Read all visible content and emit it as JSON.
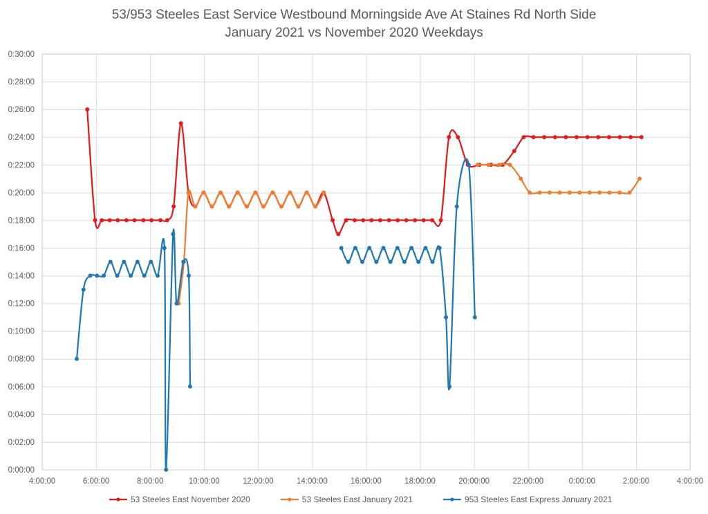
{
  "chart_data": {
    "type": "line",
    "title_lines": [
      "53/953 Steeles East Service Westbound Morningside Ave At Staines Rd North Side",
      "January 2021 vs November 2020 Weekdays"
    ],
    "xlabel": "",
    "ylabel": "",
    "x_unit": "hours since midnight",
    "y_unit": "minutes",
    "xlim": [
      4,
      28
    ],
    "ylim": [
      0,
      30
    ],
    "x_tick_values": [
      4,
      6,
      8,
      10,
      12,
      14,
      16,
      18,
      20,
      22,
      24,
      26,
      28
    ],
    "x_tick_labels": [
      "4:00:00",
      "6:00:00",
      "8:00:00",
      "10:00:00",
      "12:00:00",
      "14:00:00",
      "16:00:00",
      "18:00:00",
      "20:00:00",
      "22:00:00",
      "0:00:00",
      "2:00:00",
      "4:00:00"
    ],
    "y_tick_values": [
      0,
      2,
      4,
      6,
      8,
      10,
      12,
      14,
      16,
      18,
      20,
      22,
      24,
      26,
      28,
      30
    ],
    "y_tick_labels": [
      "0:00:00",
      "0:02:00",
      "0:04:00",
      "0:06:00",
      "0:08:00",
      "0:10:00",
      "0:12:00",
      "0:14:00",
      "0:16:00",
      "0:18:00",
      "0:20:00",
      "0:22:00",
      "0:24:00",
      "0:26:00",
      "0:28:00",
      "0:30:00"
    ],
    "grid": true,
    "legend_position": "bottom",
    "series": [
      {
        "name": "53 Steeles East November 2020",
        "color": "#E31A1C",
        "points": [
          [
            5.67,
            26
          ],
          [
            5.96,
            18
          ],
          [
            6.21,
            18
          ],
          [
            6.5,
            18
          ],
          [
            6.8,
            18
          ],
          [
            7.12,
            18
          ],
          [
            7.42,
            18
          ],
          [
            7.75,
            18
          ],
          [
            8.05,
            18
          ],
          [
            8.38,
            18
          ],
          [
            8.63,
            18
          ],
          [
            8.87,
            19
          ],
          [
            9.14,
            25
          ],
          [
            9.42,
            20
          ],
          [
            9.67,
            19
          ],
          [
            9.98,
            20
          ],
          [
            10.29,
            19
          ],
          [
            10.61,
            20
          ],
          [
            10.92,
            19
          ],
          [
            11.24,
            20
          ],
          [
            11.58,
            19
          ],
          [
            11.9,
            20
          ],
          [
            12.2,
            19
          ],
          [
            12.54,
            20
          ],
          [
            12.86,
            19
          ],
          [
            13.18,
            20
          ],
          [
            13.49,
            19
          ],
          [
            13.8,
            20
          ],
          [
            14.12,
            19
          ],
          [
            14.43,
            20
          ],
          [
            14.76,
            18
          ],
          [
            14.97,
            17
          ],
          [
            15.26,
            18
          ],
          [
            15.58,
            18
          ],
          [
            15.89,
            18
          ],
          [
            16.2,
            18
          ],
          [
            16.52,
            18
          ],
          [
            16.85,
            18
          ],
          [
            17.17,
            18
          ],
          [
            17.49,
            18
          ],
          [
            17.81,
            18
          ],
          [
            18.13,
            18
          ],
          [
            18.45,
            18
          ],
          [
            18.77,
            18
          ],
          [
            19.07,
            24
          ],
          [
            19.4,
            24
          ],
          [
            19.77,
            22
          ],
          [
            20.2,
            22
          ],
          [
            20.63,
            22
          ],
          [
            21.06,
            22
          ],
          [
            21.49,
            23
          ],
          [
            21.84,
            24
          ],
          [
            22.2,
            24
          ],
          [
            22.6,
            24
          ],
          [
            23.0,
            24
          ],
          [
            23.4,
            24
          ],
          [
            23.8,
            24
          ],
          [
            24.2,
            24
          ],
          [
            24.6,
            24
          ],
          [
            25.0,
            24
          ],
          [
            25.4,
            24
          ],
          [
            25.8,
            24
          ],
          [
            26.2,
            24
          ]
        ]
      },
      {
        "name": "53 Steeles East January 2021",
        "color": "#ED7D31",
        "points": [
          [
            9.06,
            12
          ],
          [
            9.25,
            15
          ],
          [
            9.42,
            20
          ],
          [
            9.67,
            19
          ],
          [
            9.98,
            20
          ],
          [
            10.29,
            19
          ],
          [
            10.61,
            20
          ],
          [
            10.92,
            19
          ],
          [
            11.24,
            20
          ],
          [
            11.58,
            19
          ],
          [
            11.9,
            20
          ],
          [
            12.2,
            19
          ],
          [
            12.54,
            20
          ],
          [
            12.86,
            19
          ],
          [
            13.18,
            20
          ],
          [
            13.49,
            19
          ],
          [
            13.8,
            20
          ],
          [
            14.12,
            19
          ],
          [
            14.43,
            20
          ],
          [
            20.13,
            22
          ],
          [
            20.53,
            22
          ],
          [
            20.93,
            22
          ],
          [
            21.33,
            22
          ],
          [
            21.73,
            21
          ],
          [
            22.06,
            20
          ],
          [
            22.43,
            20
          ],
          [
            22.8,
            20
          ],
          [
            23.17,
            20
          ],
          [
            23.54,
            20
          ],
          [
            23.91,
            20
          ],
          [
            24.28,
            20
          ],
          [
            24.65,
            20
          ],
          [
            25.02,
            20
          ],
          [
            25.39,
            20
          ],
          [
            25.76,
            20
          ],
          [
            26.13,
            21
          ]
        ]
      },
      {
        "name": "953 Steeles East Express January 2021",
        "color": "#1F77B4",
        "points": [
          [
            5.28,
            8
          ],
          [
            5.53,
            13
          ],
          [
            5.78,
            14
          ],
          [
            6.03,
            14
          ],
          [
            6.28,
            14
          ],
          [
            6.53,
            15
          ],
          [
            6.78,
            14
          ],
          [
            7.03,
            15
          ],
          [
            7.28,
            14
          ],
          [
            7.53,
            15
          ],
          [
            7.78,
            14
          ],
          [
            8.03,
            15
          ],
          [
            8.28,
            14
          ],
          [
            8.53,
            16
          ],
          [
            8.59,
            0
          ],
          [
            8.85,
            17
          ],
          [
            8.98,
            12
          ],
          [
            9.23,
            15
          ],
          [
            9.43,
            14
          ],
          [
            9.48,
            6
          ],
          [
            15.08,
            16
          ],
          [
            15.34,
            15
          ],
          [
            15.6,
            16
          ],
          [
            15.86,
            15
          ],
          [
            16.12,
            16
          ],
          [
            16.38,
            15
          ],
          [
            16.64,
            16
          ],
          [
            16.9,
            15
          ],
          [
            17.16,
            16
          ],
          [
            17.42,
            15
          ],
          [
            17.68,
            16
          ],
          [
            17.94,
            15
          ],
          [
            18.2,
            16
          ],
          [
            18.46,
            15
          ],
          [
            18.72,
            16
          ],
          [
            18.96,
            11
          ],
          [
            19.09,
            6
          ],
          [
            19.36,
            19
          ],
          [
            19.8,
            22
          ],
          [
            20.03,
            11
          ]
        ]
      }
    ]
  }
}
